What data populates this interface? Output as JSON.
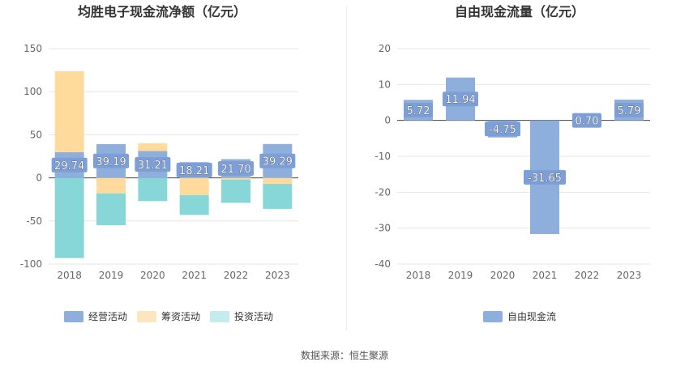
{
  "source_text": "数据来源：恒生聚源",
  "chart_data": [
    {
      "type": "bar",
      "stacked": true,
      "title": "均胜电子现金流净额（亿元）",
      "categories": [
        "2018",
        "2019",
        "2020",
        "2021",
        "2022",
        "2023"
      ],
      "ylim": [
        -100,
        150
      ],
      "yticks": [
        -100,
        -50,
        0,
        50,
        100,
        150
      ],
      "grid": true,
      "legend_position": "bottom",
      "series": [
        {
          "name": "经营活动",
          "color": "#8eaedc",
          "values": [
            29.74,
            39.19,
            31.21,
            18.21,
            21.7,
            39.29
          ],
          "labels": [
            "29.74",
            "39.19",
            "31.21",
            "18.21",
            "21.70",
            "39.29"
          ]
        },
        {
          "name": "筹资活动",
          "color": "#fedb9c",
          "values": [
            94,
            -18,
            9,
            -20,
            -2,
            -7
          ]
        },
        {
          "name": "投资活动",
          "color": "#88d7d8",
          "values": [
            -93,
            -37,
            -27,
            -23,
            -27,
            -29
          ]
        }
      ]
    },
    {
      "type": "bar",
      "title": "自由现金流量（亿元）",
      "categories": [
        "2018",
        "2019",
        "2020",
        "2021",
        "2022",
        "2023"
      ],
      "ylim": [
        -40,
        20
      ],
      "yticks": [
        -40,
        -30,
        -20,
        -10,
        0,
        10,
        20
      ],
      "grid": true,
      "legend_position": "bottom",
      "series": [
        {
          "name": "自由现金流",
          "color": "#8eaedc",
          "values": [
            5.72,
            11.94,
            -4.75,
            -31.65,
            0.7,
            5.79
          ],
          "labels": [
            "5.72",
            "11.94",
            "-4.75",
            "-31.65",
            "0.70",
            "5.79"
          ]
        }
      ]
    }
  ]
}
